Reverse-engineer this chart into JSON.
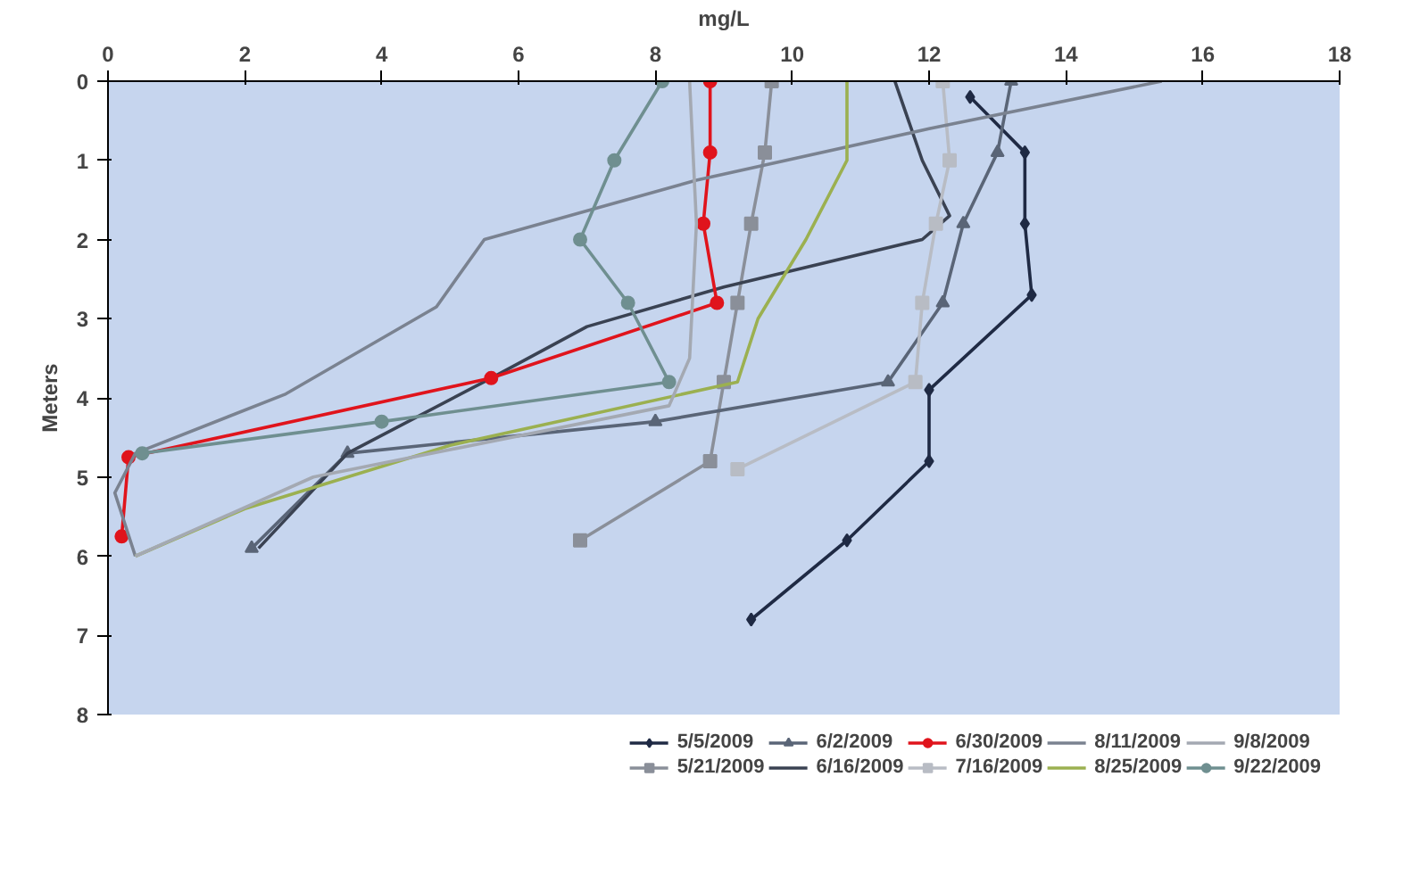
{
  "chart_data": {
    "type": "line",
    "xlabel": "mg/L",
    "ylabel": "Meters",
    "xlim": [
      0,
      18
    ],
    "xticks": [
      0,
      2,
      4,
      6,
      8,
      10,
      12,
      14,
      16,
      18
    ],
    "ylim": [
      8,
      0
    ],
    "yticks": [
      0,
      1,
      2,
      3,
      4,
      5,
      6,
      7,
      8
    ],
    "grid": false,
    "legend": "bottom",
    "series": [
      {
        "name": "5/5/2009",
        "color": "#1f2a44",
        "marker": "diamond",
        "x": [
          12.6,
          13.4,
          13.4,
          13.5,
          12.0,
          12.0,
          10.8,
          9.4
        ],
        "values": [
          0.2,
          0.9,
          1.8,
          2.7,
          3.9,
          4.8,
          5.8,
          6.8
        ]
      },
      {
        "name": "5/21/2009",
        "color": "#8a8f99",
        "marker": "square",
        "x": [
          9.7,
          9.6,
          9.4,
          9.2,
          9.0,
          8.8,
          6.9
        ],
        "values": [
          0.0,
          0.9,
          1.8,
          2.8,
          3.8,
          4.8,
          5.8
        ]
      },
      {
        "name": "6/2/2009",
        "color": "#5a6577",
        "marker": "triangle",
        "x": [
          13.2,
          13.0,
          12.5,
          12.2,
          11.4,
          8.0,
          3.5,
          2.1
        ],
        "values": [
          0.0,
          0.9,
          1.8,
          2.8,
          3.8,
          4.3,
          4.7,
          5.9
        ]
      },
      {
        "name": "6/16/2009",
        "color": "#3a4252",
        "marker": "none",
        "x": [
          11.5,
          11.9,
          12.3,
          11.9,
          9.0,
          7.0,
          5.6,
          3.5,
          2.2
        ],
        "values": [
          0.0,
          1.0,
          1.7,
          2.0,
          2.6,
          3.1,
          3.75,
          4.7,
          5.9
        ]
      },
      {
        "name": "6/30/2009",
        "color": "#e0141c",
        "marker": "circle",
        "x": [
          8.8,
          8.8,
          8.7,
          8.9,
          5.6,
          0.3,
          0.2
        ],
        "values": [
          0.0,
          0.9,
          1.8,
          2.8,
          3.75,
          4.75,
          5.75
        ]
      },
      {
        "name": "7/16/2009",
        "color": "#b8bcc4",
        "marker": "square",
        "x": [
          12.2,
          12.3,
          12.1,
          11.9,
          11.8,
          9.2
        ],
        "values": [
          0.0,
          1.0,
          1.8,
          2.8,
          3.8,
          4.9
        ]
      },
      {
        "name": "8/11/2009",
        "color": "#7a8290",
        "marker": "none",
        "x": [
          15.4,
          12.0,
          8.6,
          5.5,
          4.8,
          2.6,
          0.4,
          0.1,
          0.4
        ],
        "values": [
          0.0,
          0.6,
          1.25,
          2.0,
          2.85,
          3.95,
          4.7,
          5.2,
          6.0
        ]
      },
      {
        "name": "8/25/2009",
        "color": "#9bb050",
        "marker": "none",
        "x": [
          10.8,
          10.8,
          10.2,
          9.5,
          9.2,
          5.0,
          2.0,
          0.4
        ],
        "values": [
          0.0,
          1.0,
          2.0,
          3.0,
          3.8,
          4.6,
          5.4,
          6.0
        ]
      },
      {
        "name": "9/8/2009",
        "color": "#a4a9b2",
        "marker": "none",
        "x": [
          8.5,
          8.6,
          8.5,
          8.2,
          3.0,
          0.4
        ],
        "values": [
          0.0,
          1.8,
          3.5,
          4.1,
          5.0,
          6.0
        ]
      },
      {
        "name": "9/22/2009",
        "color": "#6f8f90",
        "marker": "circle",
        "x": [
          8.1,
          7.4,
          6.9,
          7.6,
          8.2,
          4.0,
          0.5
        ],
        "values": [
          0.0,
          1.0,
          2.0,
          2.8,
          3.8,
          4.3,
          4.7
        ]
      }
    ]
  }
}
